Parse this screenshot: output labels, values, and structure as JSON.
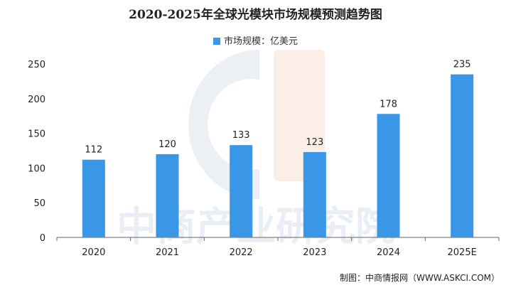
{
  "title": "2020-2025年全球光模块市场规模预测趋势图",
  "source": "制图：中商情报网（WWW.ASKCI.COM）",
  "watermark": "中商产业研究院",
  "colors": {
    "bar": "#3a97e8",
    "axis": "#666666",
    "text": "#222222"
  },
  "chart_data": {
    "type": "bar",
    "categories": [
      "2020",
      "2021",
      "2022",
      "2023",
      "2024",
      "2025E"
    ],
    "series": [
      {
        "name": "市场规模：亿美元",
        "values": [
          112,
          120,
          133,
          123,
          178,
          235
        ]
      }
    ],
    "ylim": [
      0,
      250
    ],
    "yticks": [
      "0",
      "50",
      "100",
      "150",
      "200",
      "250"
    ],
    "grid": false,
    "legend": "top-center",
    "data_labels": true
  }
}
